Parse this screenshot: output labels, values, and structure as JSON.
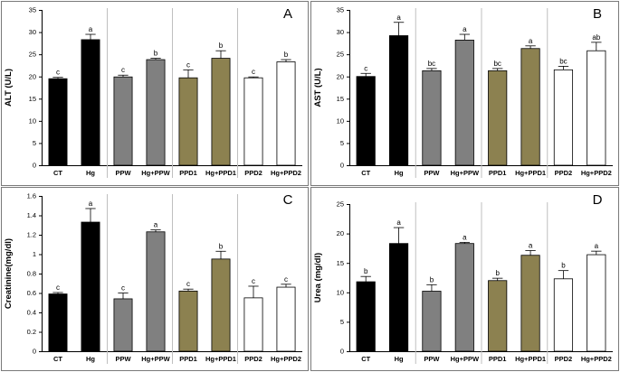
{
  "chart_data": [
    {
      "type": "bar",
      "panel_letter": "A",
      "ylabel": "ALT (U/L)",
      "ylim": [
        0,
        35
      ],
      "yticks": [
        0,
        5,
        10,
        15,
        20,
        25,
        30,
        35
      ],
      "ytick_labels": [
        "0",
        "5",
        "10",
        "15",
        "20",
        "25",
        "30",
        "35"
      ],
      "categories": [
        "CT",
        "Hg",
        "PPW",
        "Hg+PPW",
        "PPD1",
        "Hg+PPD1",
        "PPD2",
        "Hg+PPD2"
      ],
      "values": [
        19.5,
        28.3,
        19.9,
        23.8,
        19.7,
        24.1,
        19.7,
        23.3
      ],
      "errors": [
        0.3,
        1.2,
        0.4,
        0.3,
        1.8,
        1.7,
        0.2,
        0.5
      ],
      "significance": [
        "c",
        "a",
        "c",
        "b",
        "c",
        "b",
        "c",
        "b"
      ],
      "bar_colors": [
        "#000000",
        "#000000",
        "#808080",
        "#808080",
        "#8c8150",
        "#8c8150",
        "#ffffff",
        "#ffffff"
      ]
    },
    {
      "type": "bar",
      "panel_letter": "B",
      "ylabel": "AST (U/L)",
      "ylim": [
        0,
        35
      ],
      "yticks": [
        0,
        5,
        10,
        15,
        20,
        25,
        30,
        35
      ],
      "ytick_labels": [
        "0",
        "5",
        "10",
        "15",
        "20",
        "25",
        "30",
        "35"
      ],
      "categories": [
        "CT",
        "Hg",
        "PPW",
        "Hg+PPW",
        "PPD1",
        "Hg+PPD1",
        "PPD2",
        "Hg+PPD2"
      ],
      "values": [
        20.0,
        29.2,
        21.3,
        28.2,
        21.3,
        26.3,
        21.5,
        25.8
      ],
      "errors": [
        0.7,
        3.0,
        0.5,
        1.3,
        0.5,
        0.6,
        0.8,
        1.9
      ],
      "significance": [
        "c",
        "a",
        "bc",
        "a",
        "bc",
        "a",
        "bc",
        "ab"
      ],
      "bar_colors": [
        "#000000",
        "#000000",
        "#808080",
        "#808080",
        "#8c8150",
        "#8c8150",
        "#ffffff",
        "#ffffff"
      ]
    },
    {
      "type": "bar",
      "panel_letter": "C",
      "ylabel": "Creatinine(mg/dl)",
      "ylim": [
        0,
        1.6
      ],
      "yticks": [
        0,
        0.2,
        0.4,
        0.6,
        0.8,
        1.0,
        1.2,
        1.4,
        1.6
      ],
      "ytick_labels": [
        "0",
        "0.2",
        "0.4",
        "0.6",
        "0.8",
        "1",
        "1.2",
        "1.4",
        "1.6"
      ],
      "categories": [
        "CT",
        "Hg",
        "PPW",
        "Hg+PPW",
        "PPD1",
        "Hg+PPD1",
        "PPD2",
        "Hg+PPD2"
      ],
      "values": [
        0.59,
        1.33,
        0.54,
        1.23,
        0.62,
        0.95,
        0.55,
        0.66
      ],
      "errors": [
        0.015,
        0.14,
        0.06,
        0.02,
        0.02,
        0.08,
        0.12,
        0.03
      ],
      "significance": [
        "c",
        "a",
        "c",
        "a",
        "c",
        "b",
        "c",
        "c"
      ],
      "bar_colors": [
        "#000000",
        "#000000",
        "#808080",
        "#808080",
        "#8c8150",
        "#8c8150",
        "#ffffff",
        "#ffffff"
      ]
    },
    {
      "type": "bar",
      "panel_letter": "D",
      "ylabel": "Urea (mg/dl)",
      "ylim": [
        0,
        25
      ],
      "yticks": [
        0,
        5,
        10,
        15,
        20,
        25
      ],
      "ytick_labels": [
        "0",
        "5",
        "10",
        "15",
        "20",
        "25"
      ],
      "categories": [
        "CT",
        "Hg",
        "PPW",
        "Hg+PPW",
        "PPD1",
        "Hg+PPD1",
        "PPD2",
        "Hg+PPD2"
      ],
      "values": [
        11.8,
        18.3,
        10.2,
        18.3,
        12.0,
        16.3,
        12.3,
        16.4
      ],
      "errors": [
        0.9,
        2.7,
        1.1,
        0.2,
        0.4,
        0.8,
        1.4,
        0.6
      ],
      "significance": [
        "b",
        "a",
        "b",
        "a",
        "b",
        "a",
        "b",
        "a"
      ],
      "bar_colors": [
        "#000000",
        "#000000",
        "#808080",
        "#808080",
        "#8c8150",
        "#8c8150",
        "#ffffff",
        "#ffffff"
      ]
    }
  ]
}
